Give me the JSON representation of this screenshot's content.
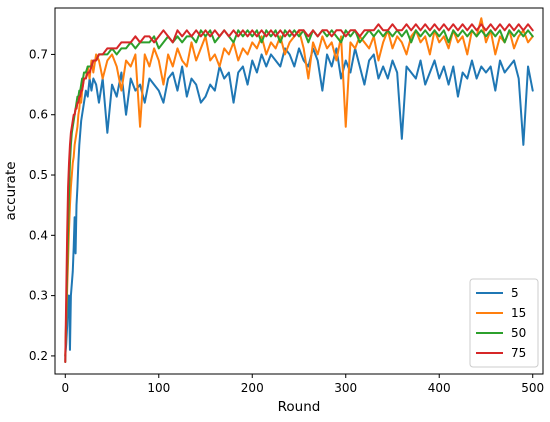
{
  "chart_data": {
    "type": "line",
    "title": "",
    "xlabel": "Round",
    "ylabel": "accurate",
    "xlim": [
      -11,
      511
    ],
    "ylim": [
      0.17,
      0.777
    ],
    "x_ticks": [
      0,
      100,
      200,
      300,
      400,
      500
    ],
    "y_ticks": [
      0.2,
      0.3,
      0.4,
      0.5,
      0.6,
      0.7
    ],
    "x_tick_labels": [
      "0",
      "100",
      "200",
      "300",
      "400",
      "500"
    ],
    "y_tick_labels": [
      "0.2",
      "0.3",
      "0.4",
      "0.5",
      "0.6",
      "0.7"
    ],
    "grid": false,
    "legend_position": "bottom-right",
    "x": [
      0,
      1,
      2,
      3,
      4,
      5,
      6,
      7,
      8,
      9,
      10,
      11,
      12,
      13,
      14,
      15,
      16,
      17,
      18,
      19,
      20,
      22,
      24,
      26,
      28,
      30,
      33,
      36,
      40,
      45,
      50,
      55,
      60,
      65,
      70,
      75,
      80,
      85,
      90,
      95,
      100,
      105,
      110,
      115,
      120,
      125,
      130,
      135,
      140,
      145,
      150,
      155,
      160,
      165,
      170,
      175,
      180,
      185,
      190,
      195,
      200,
      205,
      210,
      215,
      220,
      225,
      230,
      235,
      240,
      245,
      250,
      255,
      260,
      265,
      270,
      275,
      280,
      285,
      290,
      295,
      300,
      305,
      310,
      315,
      320,
      325,
      330,
      335,
      340,
      345,
      350,
      355,
      360,
      365,
      370,
      375,
      380,
      385,
      390,
      395,
      400,
      405,
      410,
      415,
      420,
      425,
      430,
      435,
      440,
      445,
      450,
      455,
      460,
      465,
      470,
      475,
      480,
      485,
      490,
      495,
      500
    ],
    "series": [
      {
        "name": "5",
        "color": "#1f77b4",
        "values": [
          0.2,
          0.22,
          0.25,
          0.3,
          0.3,
          0.21,
          0.3,
          0.32,
          0.34,
          0.38,
          0.43,
          0.37,
          0.45,
          0.48,
          0.52,
          0.55,
          0.57,
          0.59,
          0.6,
          0.61,
          0.62,
          0.64,
          0.63,
          0.66,
          0.64,
          0.66,
          0.65,
          0.62,
          0.66,
          0.57,
          0.65,
          0.63,
          0.67,
          0.6,
          0.66,
          0.64,
          0.65,
          0.62,
          0.66,
          0.65,
          0.64,
          0.62,
          0.66,
          0.67,
          0.64,
          0.68,
          0.63,
          0.66,
          0.65,
          0.62,
          0.63,
          0.65,
          0.64,
          0.68,
          0.66,
          0.67,
          0.62,
          0.67,
          0.68,
          0.65,
          0.69,
          0.67,
          0.7,
          0.68,
          0.7,
          0.69,
          0.68,
          0.71,
          0.7,
          0.68,
          0.71,
          0.69,
          0.68,
          0.71,
          0.69,
          0.64,
          0.7,
          0.68,
          0.71,
          0.66,
          0.69,
          0.67,
          0.71,
          0.68,
          0.65,
          0.69,
          0.7,
          0.66,
          0.68,
          0.66,
          0.69,
          0.67,
          0.56,
          0.68,
          0.67,
          0.66,
          0.69,
          0.65,
          0.67,
          0.69,
          0.66,
          0.68,
          0.65,
          0.68,
          0.63,
          0.67,
          0.66,
          0.69,
          0.66,
          0.68,
          0.67,
          0.68,
          0.64,
          0.69,
          0.67,
          0.68,
          0.69,
          0.66,
          0.55,
          0.68,
          0.64
        ]
      },
      {
        "name": "15",
        "color": "#ff7f0e",
        "values": [
          0.2,
          0.26,
          0.31,
          0.36,
          0.41,
          0.45,
          0.48,
          0.5,
          0.52,
          0.53,
          0.55,
          0.56,
          0.57,
          0.58,
          0.6,
          0.61,
          0.63,
          0.62,
          0.64,
          0.65,
          0.66,
          0.66,
          0.68,
          0.66,
          0.69,
          0.67,
          0.7,
          0.69,
          0.66,
          0.69,
          0.7,
          0.68,
          0.64,
          0.69,
          0.68,
          0.7,
          0.58,
          0.7,
          0.68,
          0.71,
          0.69,
          0.65,
          0.7,
          0.68,
          0.71,
          0.69,
          0.68,
          0.72,
          0.69,
          0.71,
          0.73,
          0.69,
          0.7,
          0.68,
          0.71,
          0.7,
          0.72,
          0.69,
          0.71,
          0.7,
          0.72,
          0.71,
          0.73,
          0.7,
          0.72,
          0.71,
          0.73,
          0.7,
          0.72,
          0.73,
          0.74,
          0.71,
          0.66,
          0.72,
          0.7,
          0.73,
          0.71,
          0.72,
          0.69,
          0.73,
          0.58,
          0.72,
          0.71,
          0.73,
          0.72,
          0.71,
          0.73,
          0.69,
          0.72,
          0.74,
          0.71,
          0.73,
          0.72,
          0.7,
          0.73,
          0.74,
          0.72,
          0.73,
          0.7,
          0.74,
          0.72,
          0.73,
          0.71,
          0.74,
          0.72,
          0.73,
          0.7,
          0.74,
          0.73,
          0.76,
          0.72,
          0.74,
          0.7,
          0.73,
          0.72,
          0.74,
          0.71,
          0.73,
          0.74,
          0.72,
          0.73
        ]
      },
      {
        "name": "50",
        "color": "#2ca02c",
        "values": [
          0.19,
          0.27,
          0.34,
          0.41,
          0.47,
          0.52,
          0.55,
          0.57,
          0.58,
          0.59,
          0.6,
          0.61,
          0.62,
          0.63,
          0.63,
          0.64,
          0.64,
          0.65,
          0.66,
          0.66,
          0.67,
          0.67,
          0.68,
          0.68,
          0.68,
          0.69,
          0.69,
          0.7,
          0.7,
          0.7,
          0.71,
          0.7,
          0.71,
          0.71,
          0.72,
          0.71,
          0.72,
          0.72,
          0.72,
          0.73,
          0.71,
          0.72,
          0.73,
          0.72,
          0.73,
          0.72,
          0.73,
          0.73,
          0.72,
          0.74,
          0.73,
          0.74,
          0.72,
          0.73,
          0.74,
          0.73,
          0.72,
          0.74,
          0.73,
          0.74,
          0.73,
          0.74,
          0.72,
          0.74,
          0.73,
          0.74,
          0.72,
          0.74,
          0.73,
          0.74,
          0.73,
          0.74,
          0.72,
          0.74,
          0.73,
          0.74,
          0.73,
          0.74,
          0.73,
          0.72,
          0.74,
          0.73,
          0.74,
          0.72,
          0.73,
          0.74,
          0.73,
          0.74,
          0.73,
          0.74,
          0.73,
          0.74,
          0.73,
          0.74,
          0.72,
          0.74,
          0.73,
          0.74,
          0.73,
          0.74,
          0.73,
          0.74,
          0.72,
          0.74,
          0.73,
          0.74,
          0.73,
          0.74,
          0.73,
          0.74,
          0.73,
          0.74,
          0.73,
          0.74,
          0.72,
          0.74,
          0.73,
          0.74,
          0.73,
          0.74,
          0.73
        ]
      },
      {
        "name": "75",
        "color": "#d62728",
        "values": [
          0.19,
          0.3,
          0.4,
          0.48,
          0.52,
          0.55,
          0.57,
          0.58,
          0.59,
          0.6,
          0.6,
          0.61,
          0.61,
          0.62,
          0.62,
          0.63,
          0.63,
          0.64,
          0.64,
          0.65,
          0.66,
          0.66,
          0.67,
          0.67,
          0.68,
          0.69,
          0.69,
          0.7,
          0.7,
          0.71,
          0.71,
          0.71,
          0.72,
          0.72,
          0.72,
          0.73,
          0.72,
          0.73,
          0.73,
          0.72,
          0.73,
          0.74,
          0.73,
          0.72,
          0.74,
          0.73,
          0.74,
          0.73,
          0.74,
          0.73,
          0.74,
          0.73,
          0.74,
          0.73,
          0.74,
          0.73,
          0.74,
          0.73,
          0.74,
          0.73,
          0.74,
          0.73,
          0.74,
          0.73,
          0.74,
          0.73,
          0.74,
          0.73,
          0.74,
          0.73,
          0.74,
          0.74,
          0.73,
          0.74,
          0.73,
          0.74,
          0.74,
          0.73,
          0.74,
          0.74,
          0.73,
          0.74,
          0.74,
          0.73,
          0.74,
          0.74,
          0.74,
          0.75,
          0.74,
          0.74,
          0.75,
          0.74,
          0.74,
          0.75,
          0.74,
          0.75,
          0.74,
          0.75,
          0.74,
          0.75,
          0.74,
          0.75,
          0.74,
          0.75,
          0.74,
          0.75,
          0.74,
          0.75,
          0.74,
          0.75,
          0.74,
          0.75,
          0.74,
          0.75,
          0.74,
          0.75,
          0.74,
          0.75,
          0.74,
          0.75,
          0.74
        ]
      }
    ]
  }
}
